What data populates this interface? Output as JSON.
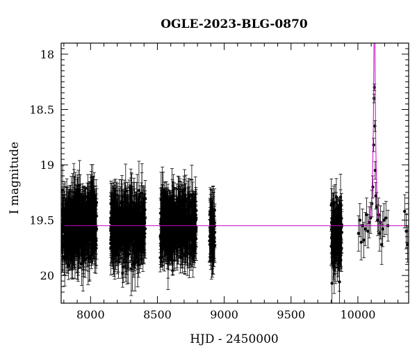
{
  "chart_data": {
    "type": "scatter",
    "title": "OGLE-2023-BLG-0870",
    "xlabel": "HJD - 2450000",
    "ylabel": "I magnitude",
    "xlim": [
      7780,
      10380
    ],
    "ylim": [
      20.25,
      17.9
    ],
    "y_inverted": true,
    "x_ticks": [
      8000,
      8500,
      9000,
      9500,
      10000
    ],
    "x_tick_labels": [
      "8000",
      "8500",
      "9000",
      "9500",
      "10000"
    ],
    "y_ticks": [
      18,
      18.5,
      19,
      19.5,
      20
    ],
    "y_tick_labels": [
      "18",
      "18.5",
      "19",
      "19.5",
      "20"
    ],
    "grid": false,
    "baseline": {
      "magnitude": 19.55,
      "color": "#cc00cc"
    },
    "model_peak": {
      "hjd": 10124,
      "color": "#cc00cc"
    },
    "point_color": "#000000",
    "data_segments": [
      {
        "start": 7785,
        "end": 8045,
        "mean": 19.56,
        "scatter": 0.12,
        "error": 0.2
      },
      {
        "start": 8150,
        "end": 8410,
        "mean": 19.56,
        "scatter": 0.12,
        "error": 0.2
      },
      {
        "start": 8520,
        "end": 8790,
        "mean": 19.56,
        "scatter": 0.12,
        "error": 0.2
      },
      {
        "start": 8890,
        "end": 8930,
        "mean": 19.58,
        "scatter": 0.1,
        "error": 0.18
      },
      {
        "start": 9800,
        "end": 9880,
        "mean": 19.6,
        "scatter": 0.12,
        "error": 0.2
      }
    ],
    "event_points": [
      {
        "x": 10005,
        "y": 19.62,
        "err": 0.16
      },
      {
        "x": 10015,
        "y": 19.5,
        "err": 0.15
      },
      {
        "x": 10025,
        "y": 19.7,
        "err": 0.16
      },
      {
        "x": 10035,
        "y": 19.55,
        "err": 0.15
      },
      {
        "x": 10045,
        "y": 19.68,
        "err": 0.16
      },
      {
        "x": 10055,
        "y": 19.58,
        "err": 0.15
      },
      {
        "x": 10065,
        "y": 19.45,
        "err": 0.15
      },
      {
        "x": 10075,
        "y": 19.6,
        "err": 0.15
      },
      {
        "x": 10085,
        "y": 19.52,
        "err": 0.14
      },
      {
        "x": 10095,
        "y": 19.48,
        "err": 0.14
      },
      {
        "x": 10105,
        "y": 19.35,
        "err": 0.12
      },
      {
        "x": 10112,
        "y": 19.2,
        "err": 0.1
      },
      {
        "x": 10118,
        "y": 18.82,
        "err": 0.06
      },
      {
        "x": 10121,
        "y": 18.4,
        "err": 0.04
      },
      {
        "x": 10124,
        "y": 18.3,
        "err": 0.03
      },
      {
        "x": 10127,
        "y": 18.65,
        "err": 0.05
      },
      {
        "x": 10130,
        "y": 19.05,
        "err": 0.08
      },
      {
        "x": 10134,
        "y": 19.28,
        "err": 0.12
      },
      {
        "x": 10140,
        "y": 19.38,
        "err": 0.13
      },
      {
        "x": 10148,
        "y": 19.5,
        "err": 0.14
      },
      {
        "x": 10155,
        "y": 19.45,
        "err": 0.15
      },
      {
        "x": 10162,
        "y": 19.62,
        "err": 0.16
      },
      {
        "x": 10170,
        "y": 19.52,
        "err": 0.15
      },
      {
        "x": 10178,
        "y": 19.72,
        "err": 0.18
      },
      {
        "x": 10186,
        "y": 19.58,
        "err": 0.16
      },
      {
        "x": 10195,
        "y": 19.5,
        "err": 0.15
      },
      {
        "x": 10210,
        "y": 19.48,
        "err": 0.15
      },
      {
        "x": 10225,
        "y": 19.55,
        "err": 0.14
      },
      {
        "x": 10350,
        "y": 19.42,
        "err": 0.15
      },
      {
        "x": 10362,
        "y": 19.6,
        "err": 0.16
      },
      {
        "x": 10372,
        "y": 19.72,
        "err": 0.16
      }
    ]
  }
}
